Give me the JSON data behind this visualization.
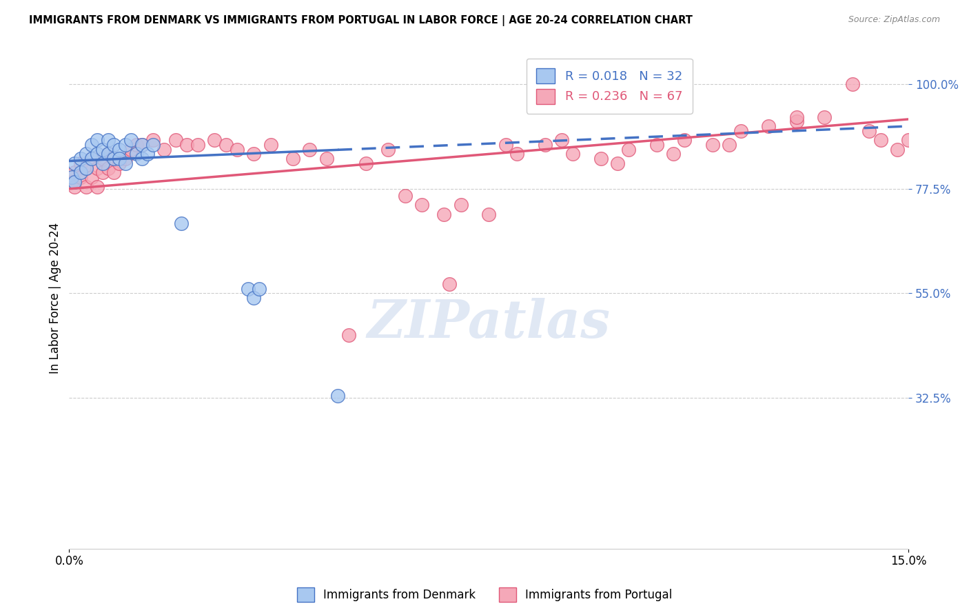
{
  "title": "IMMIGRANTS FROM DENMARK VS IMMIGRANTS FROM PORTUGAL IN LABOR FORCE | AGE 20-24 CORRELATION CHART",
  "source": "Source: ZipAtlas.com",
  "ylabel": "In Labor Force | Age 20-24",
  "xlim": [
    0.0,
    0.15
  ],
  "ylim": [
    0.0,
    1.08
  ],
  "legend_denmark": "Immigrants from Denmark",
  "legend_portugal": "Immigrants from Portugal",
  "R_denmark": 0.018,
  "N_denmark": 32,
  "R_portugal": 0.236,
  "N_portugal": 67,
  "color_denmark": "#a8c8f0",
  "color_portugal": "#f5a8b8",
  "trendline_denmark_color": "#4472c4",
  "trendline_portugal_color": "#e05878",
  "watermark": "ZIPatlas",
  "denmark_x": [
    0.0005,
    0.001,
    0.001,
    0.002,
    0.002,
    0.003,
    0.003,
    0.004,
    0.004,
    0.005,
    0.005,
    0.006,
    0.006,
    0.007,
    0.007,
    0.008,
    0.008,
    0.009,
    0.009,
    0.01,
    0.01,
    0.011,
    0.012,
    0.013,
    0.013,
    0.014,
    0.015,
    0.02,
    0.032,
    0.033,
    0.034,
    0.048
  ],
  "denmark_y": [
    0.8,
    0.83,
    0.79,
    0.84,
    0.81,
    0.85,
    0.82,
    0.87,
    0.84,
    0.88,
    0.85,
    0.86,
    0.83,
    0.88,
    0.85,
    0.87,
    0.84,
    0.86,
    0.84,
    0.87,
    0.83,
    0.88,
    0.85,
    0.87,
    0.84,
    0.85,
    0.87,
    0.7,
    0.56,
    0.54,
    0.56,
    0.33
  ],
  "portugal_x": [
    0.0005,
    0.001,
    0.001,
    0.002,
    0.002,
    0.003,
    0.003,
    0.004,
    0.004,
    0.005,
    0.005,
    0.006,
    0.006,
    0.007,
    0.007,
    0.008,
    0.008,
    0.009,
    0.01,
    0.011,
    0.012,
    0.013,
    0.015,
    0.017,
    0.019,
    0.021,
    0.023,
    0.026,
    0.028,
    0.03,
    0.033,
    0.036,
    0.04,
    0.043,
    0.046,
    0.05,
    0.053,
    0.057,
    0.06,
    0.063,
    0.067,
    0.07,
    0.075,
    0.08,
    0.085,
    0.09,
    0.095,
    0.1,
    0.105,
    0.11,
    0.115,
    0.12,
    0.125,
    0.13,
    0.135,
    0.14,
    0.143,
    0.145,
    0.148,
    0.15,
    0.13,
    0.118,
    0.108,
    0.098,
    0.088,
    0.078,
    0.068
  ],
  "portugal_y": [
    0.79,
    0.81,
    0.78,
    0.83,
    0.8,
    0.82,
    0.78,
    0.84,
    0.8,
    0.82,
    0.78,
    0.84,
    0.81,
    0.85,
    0.82,
    0.84,
    0.81,
    0.83,
    0.84,
    0.86,
    0.87,
    0.87,
    0.88,
    0.86,
    0.88,
    0.87,
    0.87,
    0.88,
    0.87,
    0.86,
    0.85,
    0.87,
    0.84,
    0.86,
    0.84,
    0.46,
    0.83,
    0.86,
    0.76,
    0.74,
    0.72,
    0.74,
    0.72,
    0.85,
    0.87,
    0.85,
    0.84,
    0.86,
    0.87,
    0.88,
    0.87,
    0.9,
    0.91,
    0.92,
    0.93,
    1.0,
    0.9,
    0.88,
    0.86,
    0.88,
    0.93,
    0.87,
    0.85,
    0.83,
    0.88,
    0.87,
    0.57
  ]
}
